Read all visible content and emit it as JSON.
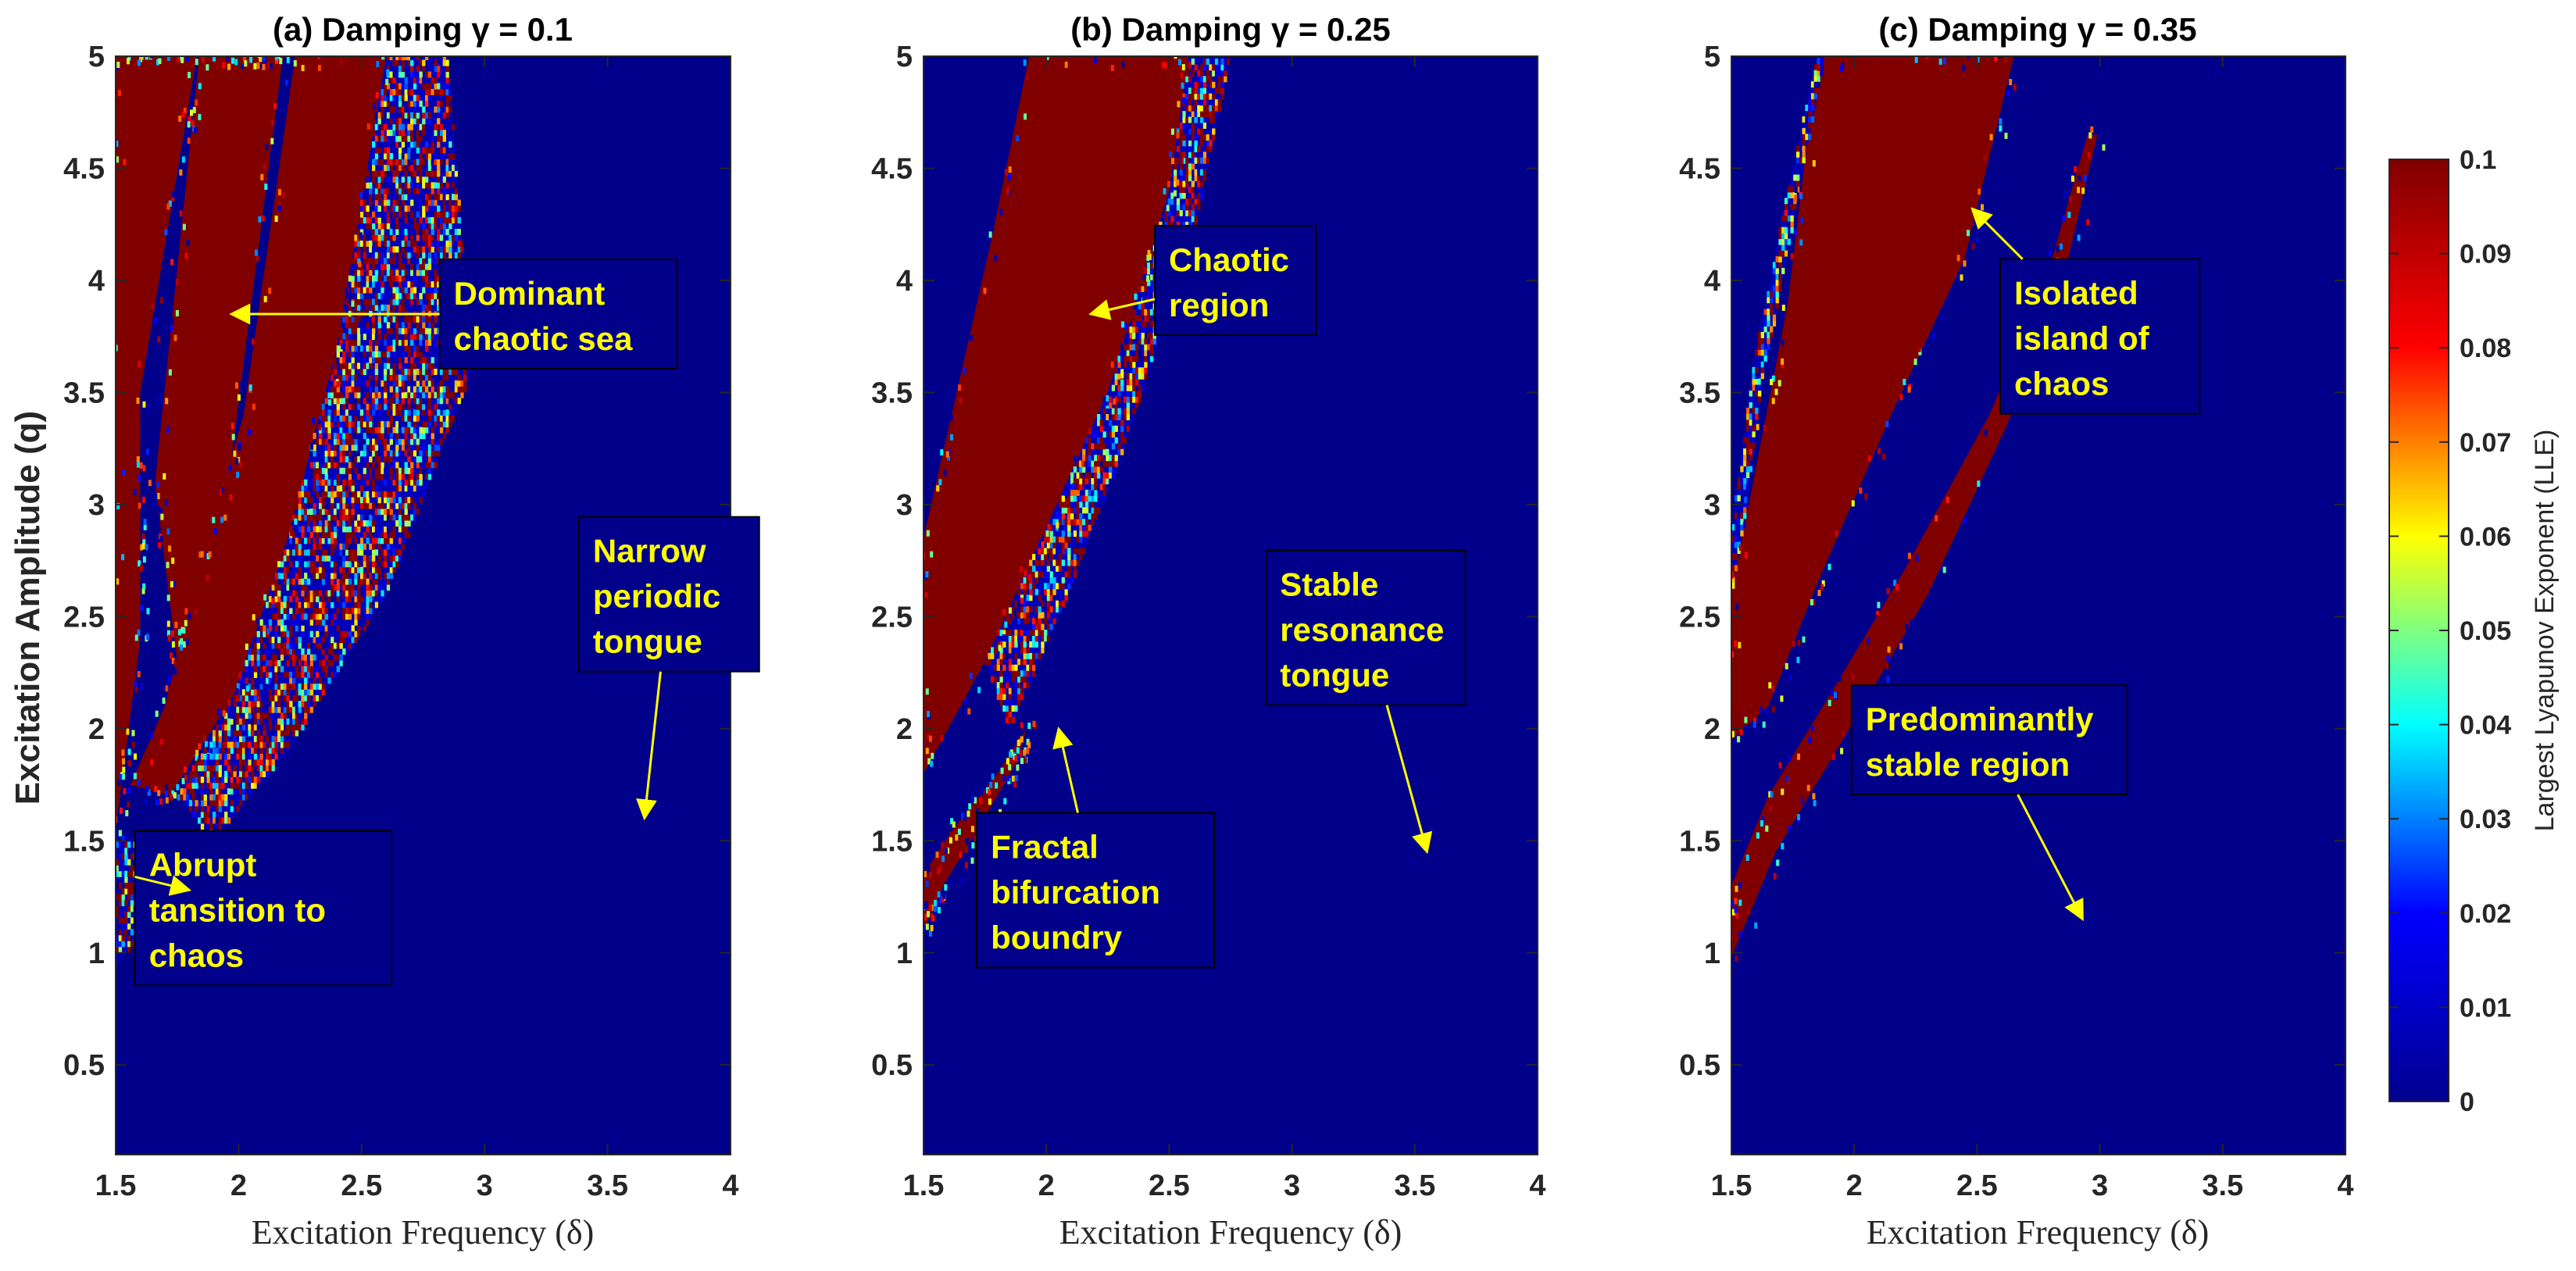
{
  "colors": {
    "background": "#00008b",
    "chaos": "#800000",
    "annotation_text": "#ffff00",
    "annotation_box_fill": "#00008b",
    "annotation_box_border": "#000000",
    "colormap": [
      "#00008f",
      "#0000ff",
      "#00ffff",
      "#ffff00",
      "#ff0000",
      "#800000"
    ]
  },
  "colorbar": {
    "label": "Largest Lyapunov Exponent (LLE)",
    "range": [
      0,
      0.1
    ],
    "ticks": [
      "0",
      "0.01",
      "0.02",
      "0.03",
      "0.04",
      "0.05",
      "0.06",
      "0.07",
      "0.08",
      "0.09",
      "0.1"
    ]
  },
  "chart_data": [
    {
      "type": "heatmap",
      "title": "(a) Damping γ = 0.1",
      "xlabel": "Excitation Frequency (δ)",
      "ylabel": "Excitation Amplitude (q)",
      "xlim": [
        1.5,
        4
      ],
      "ylim": [
        0.1,
        5
      ],
      "xticks": [
        "1.5",
        "2",
        "2.5",
        "3",
        "3.5",
        "4"
      ],
      "yticks": [
        "0.5",
        "1",
        "1.5",
        "2",
        "2.5",
        "3",
        "3.5",
        "4",
        "4.5",
        "5"
      ],
      "value_range": [
        0,
        0.1
      ],
      "regions": [
        {
          "kind": "chaotic",
          "value": 0.1,
          "polygon": [
            [
              1.5,
              1.55
            ],
            [
              1.5,
              5
            ],
            [
              1.83,
              5
            ],
            [
              1.6,
              3.5
            ],
            [
              1.6,
              2.4
            ]
          ]
        },
        {
          "kind": "chaotic",
          "value": 0.1,
          "polygon": [
            [
              1.66,
              3.1
            ],
            [
              1.84,
              5
            ],
            [
              2.18,
              5
            ],
            [
              1.97,
              3.2
            ],
            [
              1.75,
              2.3
            ]
          ]
        },
        {
          "kind": "chaotic",
          "value": 0.1,
          "polygon": [
            [
              1.56,
              1.75
            ],
            [
              1.7,
              2.1
            ],
            [
              1.85,
              2.75
            ],
            [
              2.02,
              3.4
            ],
            [
              2.23,
              5
            ],
            [
              2.6,
              5
            ],
            [
              2.4,
              3.7
            ],
            [
              2.2,
              2.85
            ],
            [
              1.98,
              2.15
            ],
            [
              1.72,
              1.7
            ]
          ]
        },
        {
          "kind": "mixed",
          "value": 0.05,
          "polygon": [
            [
              1.75,
              1.7
            ],
            [
              1.98,
              2.15
            ],
            [
              2.2,
              2.85
            ],
            [
              2.4,
              3.7
            ],
            [
              2.6,
              5
            ],
            [
              2.85,
              5
            ],
            [
              2.95,
              3.6
            ],
            [
              2.6,
              2.6
            ],
            [
              2.2,
              1.9
            ],
            [
              1.9,
              1.5
            ]
          ]
        },
        {
          "kind": "mixed",
          "value": 0.03,
          "polygon": [
            [
              1.5,
              0.95
            ],
            [
              1.5,
              1.55
            ],
            [
              1.65,
              1.45
            ],
            [
              1.75,
              1.25
            ]
          ]
        }
      ],
      "annotations": [
        {
          "text": [
            "Dominant",
            "chaotic sea"
          ],
          "text_at": [
            3.3,
            3.85
          ],
          "arrow_to": [
            1.97,
            3.85
          ]
        },
        {
          "text": [
            "Narrow",
            "periodic",
            "tongue"
          ],
          "text_at": [
            3.75,
            2.6
          ],
          "arrow_to": [
            3.65,
            1.6
          ]
        },
        {
          "text": [
            "Abrupt",
            "tansition to",
            "chaos"
          ],
          "text_at": [
            2.1,
            1.2
          ],
          "arrow_to": [
            1.8,
            1.28
          ]
        }
      ]
    },
    {
      "type": "heatmap",
      "title": "(b) Damping γ = 0.25",
      "xlabel": "Excitation Frequency (δ)",
      "ylabel": "",
      "xlim": [
        1.5,
        4
      ],
      "ylim": [
        0.1,
        5
      ],
      "xticks": [
        "1.5",
        "2",
        "2.5",
        "3",
        "3.5",
        "4"
      ],
      "yticks": [
        "0.5",
        "1",
        "1.5",
        "2",
        "2.5",
        "3",
        "3.5",
        "4",
        "4.5",
        "5"
      ],
      "value_range": [
        0,
        0.1
      ],
      "regions": [
        {
          "kind": "chaotic",
          "value": 0.1,
          "polygon": [
            [
              1.5,
              1.8
            ],
            [
              1.5,
              2.85
            ],
            [
              1.78,
              4.2
            ],
            [
              1.93,
              5
            ],
            [
              2.58,
              5
            ],
            [
              2.5,
              4.4
            ],
            [
              2.25,
              3.5
            ],
            [
              2.0,
              2.9
            ],
            [
              1.75,
              2.3
            ]
          ]
        },
        {
          "kind": "chaotic",
          "value": 0.1,
          "polygon": [
            [
              1.5,
              1.1
            ],
            [
              1.5,
              1.35
            ],
            [
              1.62,
              1.55
            ],
            [
              1.8,
              1.8
            ],
            [
              1.92,
              2.0
            ],
            [
              1.88,
              1.85
            ],
            [
              1.72,
              1.55
            ],
            [
              1.58,
              1.3
            ]
          ]
        },
        {
          "kind": "mixed",
          "value": 0.05,
          "polygon": [
            [
              1.75,
              2.3
            ],
            [
              2.0,
              2.9
            ],
            [
              2.25,
              3.5
            ],
            [
              2.5,
              4.4
            ],
            [
              2.58,
              5
            ],
            [
              2.75,
              5
            ],
            [
              2.6,
              4.2
            ],
            [
              2.3,
              3.2
            ],
            [
              2.05,
              2.5
            ],
            [
              1.85,
              2.0
            ]
          ]
        }
      ],
      "annotations": [
        {
          "text": [
            "Chaotic",
            "region"
          ],
          "text_at": [
            2.77,
            4.0
          ],
          "arrow_to": [
            2.18,
            3.85
          ]
        },
        {
          "text": [
            "Stable",
            "resonance",
            "tongue"
          ],
          "text_at": [
            3.3,
            2.45
          ],
          "arrow_to": [
            3.55,
            1.45
          ]
        },
        {
          "text": [
            "Fractal",
            "bifurcation",
            "boundry"
          ],
          "text_at": [
            2.2,
            1.28
          ],
          "arrow_to": [
            2.05,
            2.0
          ]
        }
      ]
    },
    {
      "type": "heatmap",
      "title": "(c) Damping γ = 0.35",
      "xlabel": "Excitation Frequency (δ)",
      "ylabel": "",
      "xlim": [
        1.5,
        4
      ],
      "ylim": [
        0.1,
        5
      ],
      "xticks": [
        "1.5",
        "2",
        "2.5",
        "3",
        "3.5",
        "4"
      ],
      "yticks": [
        "0.5",
        "1",
        "1.5",
        "2",
        "2.5",
        "3",
        "3.5",
        "4",
        "4.5",
        "5"
      ],
      "value_range": [
        0,
        0.1
      ],
      "regions": [
        {
          "kind": "chaotic",
          "value": 0.1,
          "polygon": [
            [
              1.5,
              1.95
            ],
            [
              1.5,
              2.6
            ],
            [
              1.73,
              3.9
            ],
            [
              1.85,
              5
            ],
            [
              2.65,
              5
            ],
            [
              2.45,
              4.1
            ],
            [
              2.15,
              3.4
            ],
            [
              1.85,
              2.65
            ],
            [
              1.65,
              2.1
            ]
          ]
        },
        {
          "kind": "chaotic",
          "value": 0.1,
          "polygon": [
            [
              1.5,
              0.98
            ],
            [
              1.5,
              1.3
            ],
            [
              1.65,
              1.7
            ],
            [
              1.9,
              2.15
            ],
            [
              2.2,
              2.7
            ],
            [
              2.55,
              3.4
            ],
            [
              2.78,
              4.0
            ],
            [
              2.95,
              4.65
            ],
            [
              2.99,
              4.65
            ],
            [
              2.85,
              4.0
            ],
            [
              2.62,
              3.35
            ],
            [
              2.3,
              2.6
            ],
            [
              1.98,
              2.0
            ],
            [
              1.68,
              1.45
            ]
          ]
        },
        {
          "kind": "mixed",
          "value": 0.04,
          "polygon": [
            [
              1.5,
              2.6
            ],
            [
              1.5,
              2.9
            ],
            [
              1.6,
              3.7
            ],
            [
              1.73,
              4.4
            ],
            [
              1.85,
              5
            ],
            [
              1.88,
              5
            ],
            [
              1.76,
              4.3
            ],
            [
              1.62,
              3.5
            ],
            [
              1.55,
              2.9
            ]
          ]
        }
      ],
      "annotations": [
        {
          "text": [
            "Isolated",
            "island of",
            "chaos"
          ],
          "text_at": [
            3.0,
            3.75
          ],
          "arrow_to": [
            2.48,
            4.32
          ]
        },
        {
          "text": [
            "Predominantly",
            "stable region"
          ],
          "text_at": [
            2.55,
            1.95
          ],
          "arrow_to": [
            2.93,
            1.15
          ]
        }
      ]
    }
  ]
}
